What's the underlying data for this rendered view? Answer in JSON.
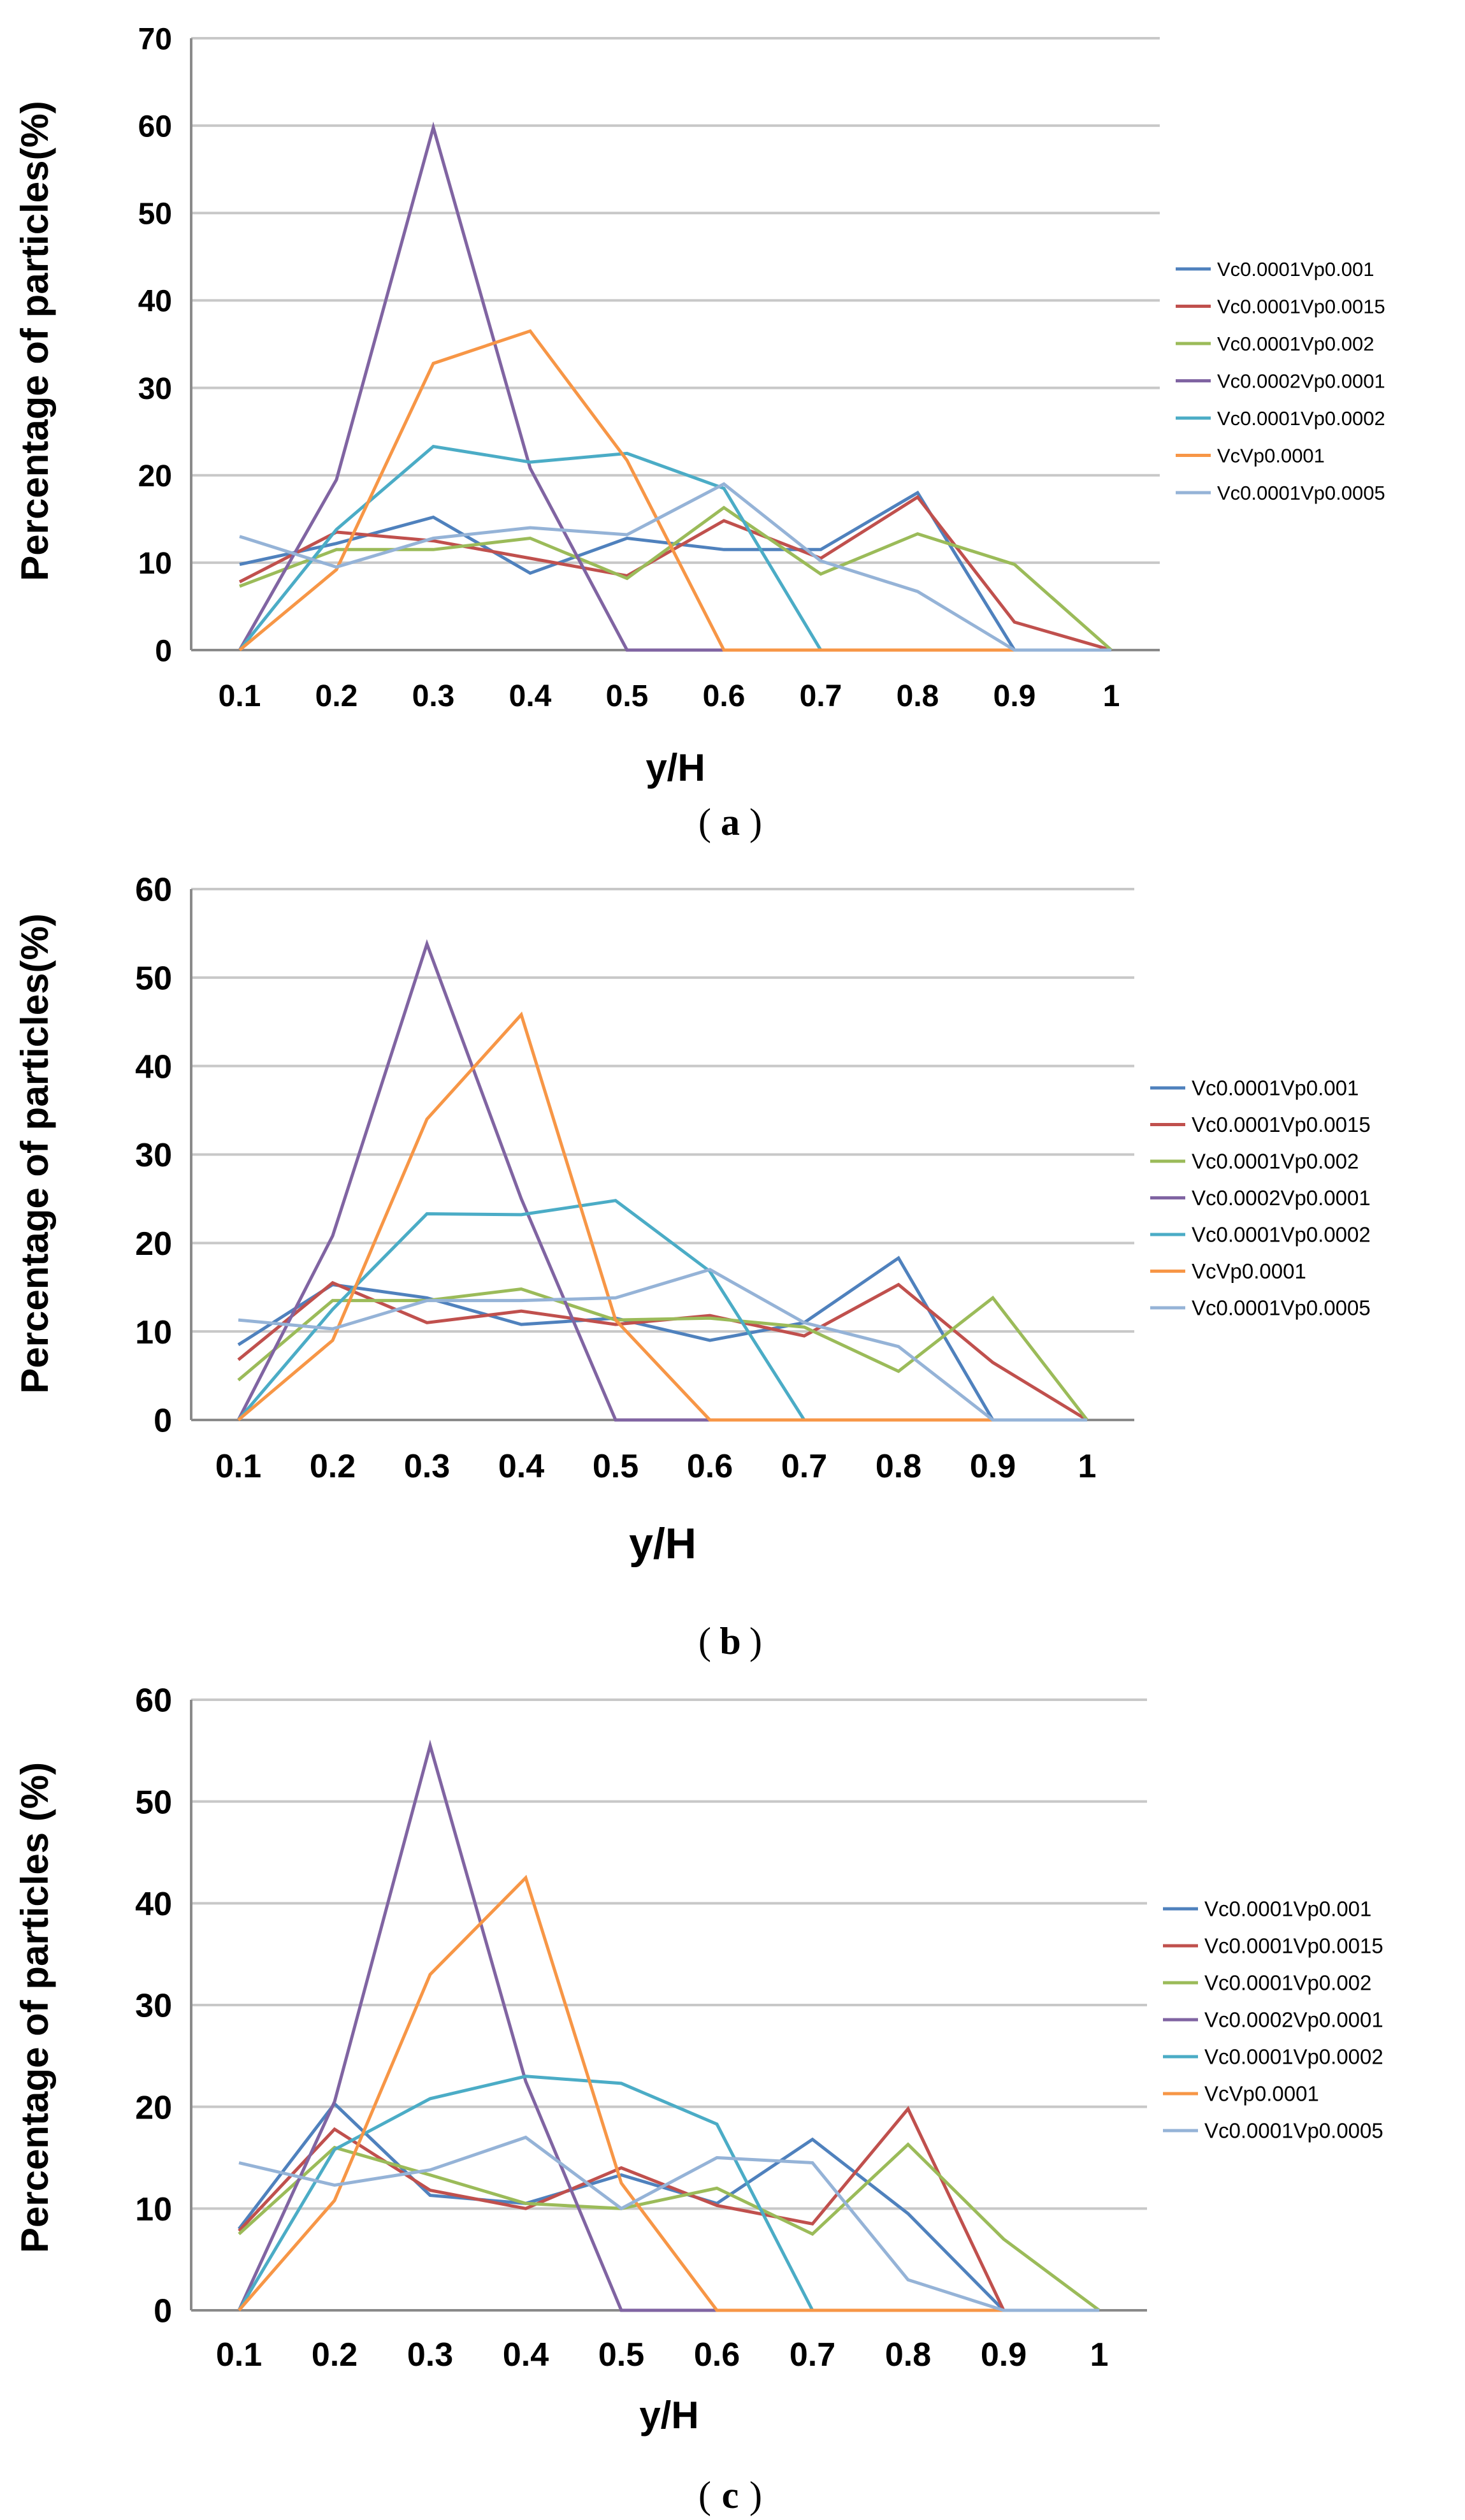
{
  "colors": [
    "#4f81bd",
    "#c0504d",
    "#9bbb59",
    "#8064a2",
    "#4bacc6",
    "#f79646",
    "#95b3d7"
  ],
  "chart_data": [
    {
      "type": "line",
      "panel": "a",
      "caption_prefix": "(",
      "caption_letter": "a",
      "caption_suffix": ")",
      "xlabel": "y/H",
      "ylabel": "Percentage of particles(%)",
      "ylim": [
        0,
        70
      ],
      "yticks": [
        "0",
        "10",
        "20",
        "30",
        "40",
        "50",
        "60",
        "70"
      ],
      "categories": [
        "0.1",
        "0.2",
        "0.3",
        "0.4",
        "0.5",
        "0.6",
        "0.7",
        "0.8",
        "0.9",
        "1"
      ],
      "series": [
        {
          "name": "Vc0.0001Vp0.001",
          "values": [
            9.8,
            12.2,
            15.2,
            8.8,
            12.8,
            11.5,
            11.5,
            18.0,
            0,
            0
          ]
        },
        {
          "name": "Vc0.0001Vp0.0015",
          "values": [
            7.8,
            13.5,
            12.5,
            10.5,
            8.5,
            14.8,
            10.5,
            17.5,
            3.2,
            0
          ]
        },
        {
          "name": "Vc0.0001Vp0.002",
          "values": [
            7.3,
            11.5,
            11.5,
            12.8,
            8.2,
            16.3,
            8.7,
            13.3,
            9.8,
            0
          ]
        },
        {
          "name": "Vc0.0002Vp0.0001",
          "values": [
            0,
            19.5,
            59.8,
            20.8,
            0,
            0,
            0,
            0,
            0,
            0
          ]
        },
        {
          "name": "Vc0.0001Vp0.0002",
          "values": [
            0,
            13.8,
            23.3,
            21.5,
            22.5,
            18.5,
            0,
            0,
            0,
            0
          ]
        },
        {
          "name": "VcVp0.0001",
          "values": [
            0,
            9.2,
            32.8,
            36.5,
            21.7,
            0,
            0,
            0,
            0,
            0
          ]
        },
        {
          "name": "Vc0.0001Vp0.0005",
          "values": [
            13.0,
            9.5,
            12.8,
            14.0,
            13.2,
            19.0,
            10.2,
            6.7,
            0,
            0
          ]
        }
      ]
    },
    {
      "type": "line",
      "panel": "b",
      "caption_prefix": "(",
      "caption_letter": "b",
      "caption_suffix": ")",
      "xlabel": "y/H",
      "ylabel": "Percentage of particles(%)",
      "ylim": [
        0,
        60
      ],
      "yticks": [
        "0",
        "10",
        "20",
        "30",
        "40",
        "50",
        "60"
      ],
      "categories": [
        "0.1",
        "0.2",
        "0.3",
        "0.4",
        "0.5",
        "0.6",
        "0.7",
        "0.8",
        "0.9",
        "1"
      ],
      "series": [
        {
          "name": "Vc0.0001Vp0.001",
          "values": [
            8.5,
            15.3,
            13.8,
            10.8,
            11.5,
            9.0,
            11.0,
            18.3,
            0,
            0
          ]
        },
        {
          "name": "Vc0.0001Vp0.0015",
          "values": [
            6.8,
            15.5,
            11.0,
            12.3,
            10.8,
            11.8,
            9.5,
            15.3,
            6.5,
            0
          ]
        },
        {
          "name": "Vc0.0001Vp0.002",
          "values": [
            4.5,
            13.5,
            13.5,
            14.8,
            11.3,
            11.5,
            10.5,
            5.5,
            13.8,
            0
          ]
        },
        {
          "name": "Vc0.0002Vp0.0001",
          "values": [
            0,
            20.8,
            53.8,
            25.0,
            0,
            0,
            0,
            0,
            0,
            0
          ]
        },
        {
          "name": "Vc0.0001Vp0.0002",
          "values": [
            0,
            12.5,
            23.3,
            23.2,
            24.8,
            16.8,
            0,
            0,
            0,
            0
          ]
        },
        {
          "name": "VcVp0.0001",
          "values": [
            0,
            9.0,
            34.0,
            45.8,
            11.3,
            0,
            0,
            0,
            0,
            0
          ]
        },
        {
          "name": "Vc0.0001Vp0.0005",
          "values": [
            11.3,
            10.3,
            13.5,
            13.5,
            13.8,
            17.0,
            11.0,
            8.3,
            0,
            0
          ]
        }
      ]
    },
    {
      "type": "line",
      "panel": "c",
      "caption_prefix": "(",
      "caption_letter": "c",
      "caption_suffix": ")",
      "xlabel": "y/H",
      "ylabel": "Percentage of particles (%)",
      "ylim": [
        0,
        60
      ],
      "yticks": [
        "0",
        "10",
        "20",
        "30",
        "40",
        "50",
        "60"
      ],
      "categories": [
        "0.1",
        "0.2",
        "0.3",
        "0.4",
        "0.5",
        "0.6",
        "0.7",
        "0.8",
        "0.9",
        "1"
      ],
      "series": [
        {
          "name": "Vc0.0001Vp0.001",
          "values": [
            8.0,
            20.3,
            11.3,
            10.5,
            13.3,
            10.5,
            16.8,
            9.5,
            0,
            0
          ]
        },
        {
          "name": "Vc0.0001Vp0.0015",
          "values": [
            7.8,
            17.8,
            11.8,
            10.0,
            14.0,
            10.3,
            8.5,
            19.8,
            0,
            0
          ]
        },
        {
          "name": "Vc0.0001Vp0.002",
          "values": [
            7.5,
            16.0,
            13.3,
            10.5,
            10.0,
            12.0,
            7.5,
            16.3,
            7.0,
            0
          ]
        },
        {
          "name": "Vc0.0002Vp0.0001",
          "values": [
            0,
            20.5,
            55.5,
            22.5,
            0,
            0,
            0,
            0,
            0,
            0
          ]
        },
        {
          "name": "Vc0.0001Vp0.0002",
          "values": [
            0,
            15.8,
            20.8,
            23.0,
            22.3,
            18.3,
            0,
            0,
            0,
            0
          ]
        },
        {
          "name": "VcVp0.0001",
          "values": [
            0,
            10.8,
            33.0,
            42.5,
            12.5,
            0,
            0,
            0,
            0,
            0
          ]
        },
        {
          "name": "Vc0.0001Vp0.0005",
          "values": [
            14.5,
            12.3,
            13.8,
            17.0,
            10.0,
            15.0,
            14.5,
            3.0,
            0,
            0
          ]
        }
      ]
    }
  ]
}
